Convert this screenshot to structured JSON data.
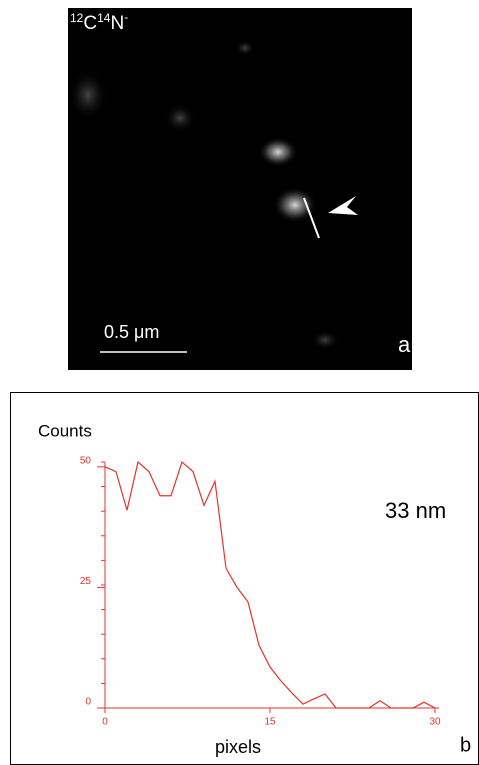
{
  "panel_a": {
    "ion_label": [
      "12",
      "C",
      "14",
      "N",
      "-"
    ],
    "scale_bar": "0.5 μm",
    "panel_letter": "a"
  },
  "chart_data": {
    "type": "line",
    "ylabel": "Counts",
    "xlabel": "pixels",
    "annotation": "33 nm",
    "panel_letter": "b",
    "color": "#e8312a",
    "x": [
      0,
      1,
      2,
      3,
      4,
      5,
      6,
      7,
      8,
      9,
      10,
      11,
      12,
      13,
      14,
      15,
      16,
      17,
      18,
      19,
      20,
      21,
      22,
      23,
      24,
      25,
      26,
      27,
      28,
      29,
      30
    ],
    "values": [
      50,
      49,
      41,
      51,
      49,
      44,
      44,
      51,
      49,
      42,
      47,
      29,
      25,
      22,
      13,
      8.5,
      5.6,
      3.1,
      0.8,
      1.9,
      2.9,
      0,
      0,
      0,
      0,
      1.5,
      0,
      0,
      0,
      1.2,
      0
    ],
    "xlim": [
      0,
      30
    ],
    "ylim": [
      0,
      51
    ],
    "xticks": [
      0,
      15,
      30
    ],
    "yticks": [
      0,
      25,
      50
    ]
  }
}
